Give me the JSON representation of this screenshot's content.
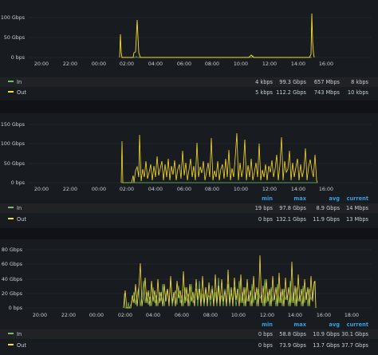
{
  "colors": {
    "background": "#181b1f",
    "page": "#111217",
    "in_series": "#73bf69",
    "out_series": "#fade2a",
    "header": "#33a2e5",
    "grid": "#2c3035"
  },
  "legend_headers": {
    "min": "min",
    "max": "max",
    "avg": "avg",
    "current": "current"
  },
  "panels": [
    {
      "y_ticks": [
        "100 Gbps",
        "50 Gbps",
        "0 bps"
      ],
      "x_ticks": [
        "20:00",
        "22:00",
        "00:00",
        "02:00",
        "04:00",
        "06:00",
        "08:00",
        "10:00",
        "12:00",
        "14:00",
        "16:00"
      ],
      "show_headers": false,
      "series": [
        {
          "name": "In",
          "min": "4 kbps",
          "max": "99.3 Gbps",
          "avg": "657 Mbps",
          "current": "8 kbps"
        },
        {
          "name": "Out",
          "min": "5 kbps",
          "max": "112.2 Gbps",
          "avg": "743 Mbps",
          "current": "10 kbps"
        }
      ]
    },
    {
      "y_ticks": [
        "150 Gbps",
        "100 Gbps",
        "50 Gbps",
        "0 bps"
      ],
      "x_ticks": [
        "20:00",
        "22:00",
        "00:00",
        "02:00",
        "04:00",
        "06:00",
        "08:00",
        "10:00",
        "12:00",
        "14:00",
        "16:00"
      ],
      "show_headers": true,
      "series": [
        {
          "name": "In",
          "min": "19 bps",
          "max": "97.8 Gbps",
          "avg": "8.9 Gbps",
          "current": "14 Mbps"
        },
        {
          "name": "Out",
          "min": "0 bps",
          "max": "132.1 Gbps",
          "avg": "11.9 Gbps",
          "current": "13 Mbps"
        }
      ]
    },
    {
      "y_ticks": [
        "80 Gbps",
        "60 Gbps",
        "40 Gbps",
        "20 Gbps",
        "0 bps"
      ],
      "x_ticks": [
        "20:00",
        "22:00",
        "00:00",
        "02:00",
        "04:00",
        "06:00",
        "08:00",
        "10:00",
        "12:00",
        "14:00",
        "16:00",
        "18:00"
      ],
      "show_headers": true,
      "series": [
        {
          "name": "In",
          "min": "0 bps",
          "max": "58.8 Gbps",
          "avg": "10.9 Gbps",
          "current": "30.1 Gbps"
        },
        {
          "name": "Out",
          "min": "0 bps",
          "max": "73.9 Gbps",
          "avg": "13.7 Gbps",
          "current": "37.7 Gbps"
        }
      ]
    }
  ]
}
